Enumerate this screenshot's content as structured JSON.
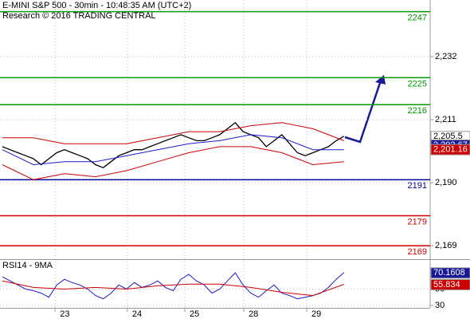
{
  "chart_data": [
    {
      "type": "line",
      "title": "E-MINI S&P 500 - 30min - 10:48:35 AM (UTC+2)",
      "subtitle": "Research © 2016 TRADING CENTRAL",
      "xlim": [
        -0.3,
        55.1
      ],
      "ylim": [
        2164.5,
        2250.9
      ],
      "yticks": [
        {
          "value": 2232,
          "label": "2,232"
        },
        {
          "value": 2211,
          "label": "2,211"
        },
        {
          "value": 2190,
          "label": "2,190"
        },
        {
          "value": 2169,
          "label": "2,169"
        }
      ],
      "xticks": [
        {
          "value": 6.8,
          "label": "23"
        },
        {
          "value": 16.1,
          "label": "24"
        },
        {
          "value": 23.5,
          "label": "25"
        },
        {
          "value": 31.1,
          "label": "28"
        },
        {
          "value": 39.2,
          "label": "29"
        }
      ],
      "grid": true,
      "levels": [
        {
          "value": 2247,
          "color": "#009900"
        },
        {
          "value": 2225,
          "color": "#009900"
        },
        {
          "value": 2216,
          "color": "#009900"
        },
        {
          "value": 2191,
          "color": "#000099"
        },
        {
          "value": 2179,
          "color": "#cc0000"
        },
        {
          "value": 2169,
          "color": "#cc0000"
        }
      ],
      "markers": [
        {
          "value": 2205.5,
          "label": "2,205.5",
          "color": "#ffffff"
        },
        {
          "value": 2202.67,
          "label": "2,202.67",
          "color": "#1a1a99"
        },
        {
          "value": 2201.16,
          "label": "2,201.16",
          "color": "#cc0000"
        }
      ],
      "series": [
        {
          "name": "price",
          "color": "#000000",
          "x": [
            0,
            1,
            2,
            3,
            4,
            5,
            6,
            7,
            8,
            9,
            10,
            11,
            12,
            13,
            14,
            15,
            16,
            17,
            18,
            19,
            20,
            21,
            22,
            23,
            24,
            25,
            26,
            27,
            28,
            29,
            30,
            31,
            32,
            33,
            34,
            35,
            36,
            37,
            38,
            39,
            40,
            41,
            42,
            43,
            44
          ],
          "values": [
            2202,
            2201,
            2200,
            2199,
            2198,
            2196,
            2198,
            2200,
            2201,
            2200,
            2199,
            2198,
            2196,
            2195,
            2197,
            2199,
            2200,
            2201,
            2201,
            2202,
            2203,
            2204,
            2205,
            2206,
            2205,
            2204,
            2204,
            2205,
            2206,
            2208,
            2210,
            2207,
            2206,
            2205,
            2202,
            2204,
            2206,
            2203,
            2200,
            2199,
            2200,
            2201,
            2202,
            2204,
            2205.5
          ]
        },
        {
          "name": "upper",
          "color": "#cc0000",
          "x": [
            0,
            4,
            8,
            12,
            16,
            20,
            24,
            28,
            32,
            36,
            40,
            44
          ],
          "values": [
            2205,
            2205,
            2203,
            2203,
            2203,
            2205,
            2207,
            2207,
            2209,
            2210,
            2208,
            2204
          ]
        },
        {
          "name": "lower",
          "color": "#cc0000",
          "x": [
            0,
            4,
            8,
            12,
            16,
            20,
            24,
            28,
            32,
            36,
            40,
            44
          ],
          "values": [
            2196,
            2191,
            2193,
            2192,
            2194,
            2197,
            2200,
            2202,
            2202,
            2200,
            2196,
            2197
          ]
        },
        {
          "name": "ma",
          "color": "#1a1acc",
          "x": [
            0,
            4,
            8,
            12,
            16,
            20,
            24,
            28,
            32,
            36,
            40,
            44
          ],
          "values": [
            2201,
            2196,
            2197,
            2197,
            2199,
            2201,
            2203,
            2204,
            2206,
            2205,
            2201,
            2201
          ]
        }
      ]
    },
    {
      "type": "line",
      "title": "RSI14 - 9MA",
      "xlim": [
        -0.3,
        55.1
      ],
      "ylim": [
        27,
        85.6
      ],
      "yticks": [
        30,
        50
      ],
      "markers": [
        {
          "value": 70.1608,
          "color": "#1a1a99"
        },
        {
          "value": 55.834,
          "color": "#cc0000"
        }
      ],
      "series": [
        {
          "name": "rsi",
          "color": "#1a1acc",
          "x": [
            0,
            1,
            2,
            3,
            4,
            5,
            6,
            7,
            8,
            9,
            10,
            11,
            12,
            13,
            14,
            15,
            16,
            17,
            18,
            19,
            20,
            21,
            22,
            23,
            24,
            25,
            26,
            27,
            28,
            29,
            30,
            31,
            32,
            33,
            34,
            35,
            36,
            37,
            38,
            39,
            40,
            41,
            42,
            43,
            44
          ],
          "values": [
            65,
            60,
            55,
            50,
            48,
            45,
            40,
            55,
            62,
            58,
            55,
            50,
            42,
            38,
            45,
            55,
            50,
            58,
            52,
            55,
            60,
            52,
            48,
            62,
            68,
            60,
            55,
            45,
            50,
            60,
            70,
            55,
            45,
            40,
            48,
            55,
            45,
            42,
            38,
            40,
            42,
            45,
            52,
            62,
            70.1608
          ]
        },
        {
          "name": "rsi-ma",
          "color": "#cc0000",
          "x": [
            0,
            4,
            8,
            12,
            16,
            20,
            24,
            28,
            32,
            36,
            40,
            44
          ],
          "values": [
            60,
            52,
            50,
            52,
            50,
            54,
            56,
            56,
            52,
            46,
            42,
            55.834
          ]
        }
      ]
    }
  ]
}
